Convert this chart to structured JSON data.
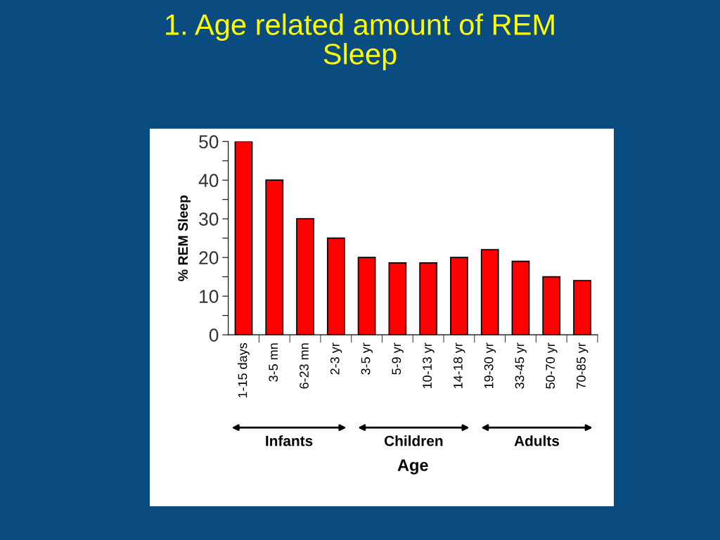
{
  "chart_data": {
    "type": "bar",
    "title": "1. Age related amount of REM\nSleep",
    "xlabel": "Age",
    "ylabel": "% REM Sleep",
    "categories": [
      "1-15 days",
      "3-5 mn",
      "6-23 mn",
      "2-3 yr",
      "3-5 yr",
      "5-9 yr",
      "10-13 yr",
      "14-18 yr",
      "19-30 yr",
      "33-45 yr",
      "50-70 yr",
      "70-85 yr"
    ],
    "values": [
      50,
      40,
      30,
      25,
      20,
      18.6,
      18.6,
      20,
      22,
      19,
      15,
      14
    ],
    "color": "#ff0000",
    "ylim": [
      0,
      50
    ],
    "yticks": [
      0,
      {
        "value": 5,
        "label": null
      },
      10,
      {
        "value": 15,
        "label": null
      },
      20,
      {
        "value": 25,
        "label": null
      },
      30,
      {
        "value": 35,
        "label": null
      },
      40,
      {
        "value": 45,
        "label": null
      },
      50
    ],
    "annotations": [
      "Infants",
      "Children",
      "Adults"
    ],
    "grid": false,
    "legend": false
  }
}
